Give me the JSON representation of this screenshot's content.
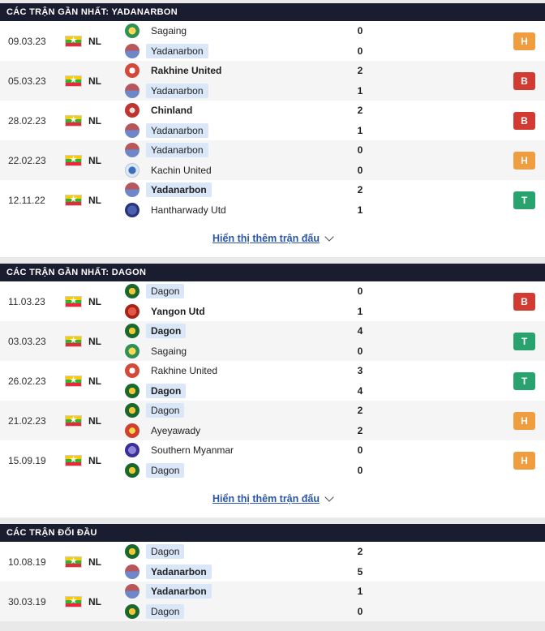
{
  "colors": {
    "header_bg": "#1a1c30",
    "win_badge": "#28a36d",
    "loss_badge": "#d23b31",
    "draw_badge": "#ef9d3f",
    "team_highlight": "#d9e7f8",
    "link": "#2a56a8"
  },
  "sections": [
    {
      "title": "CÁC TRẬN GẦN NHẤT: YADANARBON",
      "show_more_label": "Hiển thị thêm trận đấu",
      "matches": [
        {
          "date": "09.03.23",
          "league": "NL",
          "home": {
            "name": "Sagaing",
            "score": "0"
          },
          "away": {
            "name": "Yadanarbon",
            "score": "0"
          },
          "result": "H"
        },
        {
          "date": "05.03.23",
          "league": "NL",
          "home": {
            "name": "Rakhine United",
            "score": "2"
          },
          "away": {
            "name": "Yadanarbon",
            "score": "1"
          },
          "result": "B"
        },
        {
          "date": "28.02.23",
          "league": "NL",
          "home": {
            "name": "Chinland",
            "score": "2"
          },
          "away": {
            "name": "Yadanarbon",
            "score": "1"
          },
          "result": "B"
        },
        {
          "date": "22.02.23",
          "league": "NL",
          "home": {
            "name": "Yadanarbon",
            "score": "0"
          },
          "away": {
            "name": "Kachin United",
            "score": "0"
          },
          "result": "H"
        },
        {
          "date": "12.11.22",
          "league": "NL",
          "home": {
            "name": "Yadanarbon",
            "score": "2"
          },
          "away": {
            "name": "Hantharwady Utd",
            "score": "1"
          },
          "result": "T"
        }
      ]
    },
    {
      "title": "CÁC TRẬN GẦN NHẤT: DAGON",
      "show_more_label": "Hiển thị thêm trận đấu",
      "matches": [
        {
          "date": "11.03.23",
          "league": "NL",
          "home": {
            "name": "Dagon",
            "score": "0"
          },
          "away": {
            "name": "Yangon Utd",
            "score": "1"
          },
          "result": "B"
        },
        {
          "date": "03.03.23",
          "league": "NL",
          "home": {
            "name": "Dagon",
            "score": "4"
          },
          "away": {
            "name": "Sagaing",
            "score": "0"
          },
          "result": "T"
        },
        {
          "date": "26.02.23",
          "league": "NL",
          "home": {
            "name": "Rakhine United",
            "score": "3"
          },
          "away": {
            "name": "Dagon",
            "score": "4"
          },
          "result": "T"
        },
        {
          "date": "21.02.23",
          "league": "NL",
          "home": {
            "name": "Dagon",
            "score": "2"
          },
          "away": {
            "name": "Ayeyawady",
            "score": "2"
          },
          "result": "H"
        },
        {
          "date": "15.09.19",
          "league": "NL",
          "home": {
            "name": "Southern Myanmar",
            "score": "0"
          },
          "away": {
            "name": "Dagon",
            "score": "0"
          },
          "result": "H"
        }
      ]
    },
    {
      "title": "CÁC TRẬN ĐỐI ĐẦU",
      "matches": [
        {
          "date": "10.08.19",
          "league": "NL",
          "home": {
            "name": "Dagon",
            "score": "2"
          },
          "away": {
            "name": "Yadanarbon",
            "score": "5"
          }
        },
        {
          "date": "30.03.19",
          "league": "NL",
          "home": {
            "name": "Yadanarbon",
            "score": "1"
          },
          "away": {
            "name": "Dagon",
            "score": "0"
          }
        }
      ]
    }
  ]
}
